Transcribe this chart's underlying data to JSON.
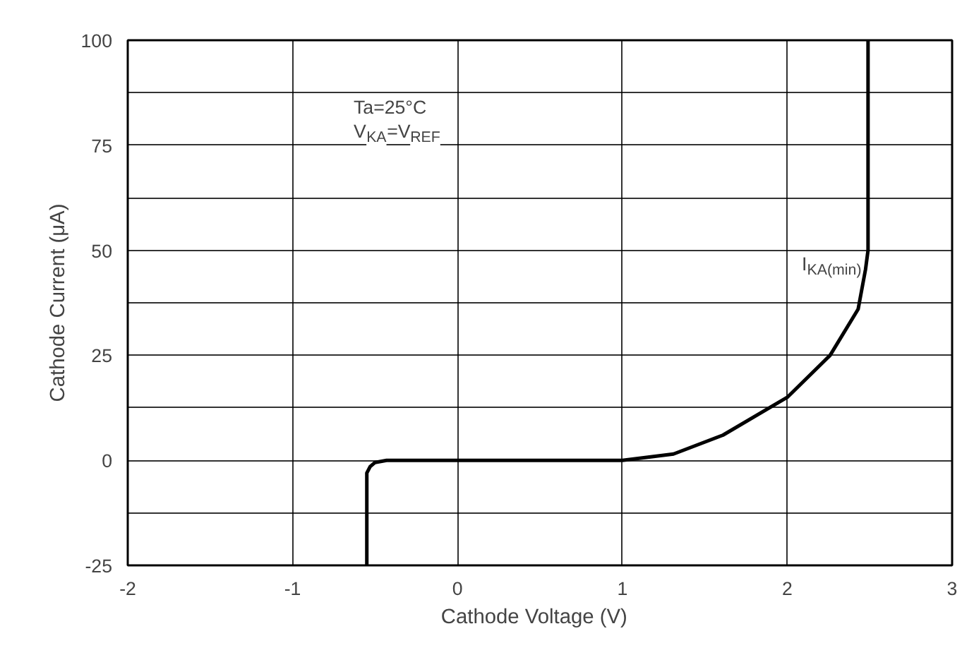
{
  "chart_data": {
    "type": "line",
    "xlabel": "Cathode Voltage   (V)",
    "ylabel": "Cathode Current (μA)",
    "annotations": [
      "Ta=25°C",
      "V$_{KA}$=V$_{REF}$",
      {
        "text": "I$_{KA(min)}$",
        "x": 2.475,
        "y": 45.5
      }
    ],
    "series": [
      {
        "color": "#000000",
        "x": [
          -0.55,
          -0.55,
          -0.53,
          -0.5,
          -0.43,
          0,
          0.5,
          1.0,
          1.31,
          1.61,
          2.0,
          2.26,
          2.43,
          2.475,
          2.49,
          2.49
        ],
        "values": [
          -25,
          -3,
          -1.5,
          -0.5,
          0,
          0,
          0,
          0,
          1.5,
          6,
          15,
          25,
          36,
          45.5,
          50,
          100
        ]
      }
    ],
    "xlim": [
      -2,
      3
    ],
    "xticks": [
      -2,
      -1,
      0,
      1,
      2,
      3
    ],
    "ylim": [
      -25,
      100
    ],
    "yticks": [
      -25,
      {
        "value": -12.5,
        "label": null
      },
      0,
      {
        "value": 12.5,
        "label": null
      },
      25,
      {
        "value": 37.5,
        "label": null
      },
      50,
      {
        "value": 62.5,
        "label": null
      },
      75,
      {
        "value": 87.5,
        "label": null
      },
      100
    ],
    "grid": true,
    "marker": "none",
    "line_style": "solid"
  }
}
